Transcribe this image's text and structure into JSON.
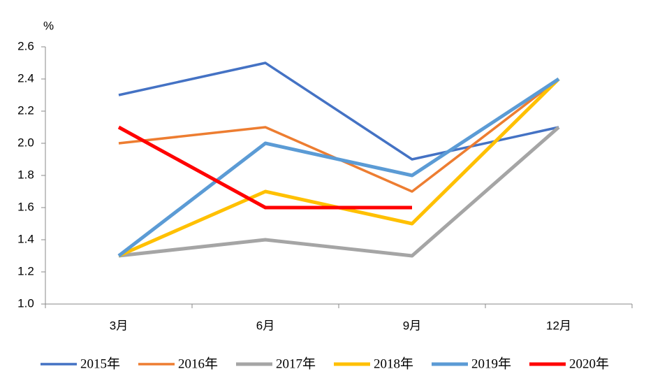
{
  "chart_data": {
    "type": "line",
    "y_label": "%",
    "categories": [
      "3月",
      "6月",
      "9月",
      "12月"
    ],
    "series": [
      {
        "name": "2015年",
        "color": "#4472c4",
        "line_width": 3.5,
        "values": [
          2.3,
          2.5,
          1.9,
          2.1
        ]
      },
      {
        "name": "2016年",
        "color": "#ed7d31",
        "line_width": 3.5,
        "values": [
          2.0,
          2.1,
          1.7,
          2.4
        ]
      },
      {
        "name": "2017年",
        "color": "#a5a5a5",
        "line_width": 5,
        "values": [
          1.3,
          1.4,
          1.3,
          2.1
        ]
      },
      {
        "name": "2018年",
        "color": "#ffc000",
        "line_width": 5,
        "values": [
          1.3,
          1.7,
          1.5,
          2.4
        ]
      },
      {
        "name": "2019年",
        "color": "#5b9bd5",
        "line_width": 5,
        "values": [
          1.3,
          2.0,
          1.8,
          2.4
        ]
      },
      {
        "name": "2020年",
        "color": "#ff0000",
        "line_width": 5,
        "values": [
          2.1,
          1.6,
          1.6,
          null
        ]
      }
    ],
    "ylim": [
      1.0,
      2.6
    ],
    "yticks": [
      {
        "value": 1.0,
        "label": "1.0"
      },
      1.2,
      1.4,
      1.6,
      1.8,
      {
        "value": 2.0,
        "label": "2.0"
      },
      2.2,
      2.4,
      2.6
    ],
    "grid": false,
    "legend": "bottom"
  }
}
